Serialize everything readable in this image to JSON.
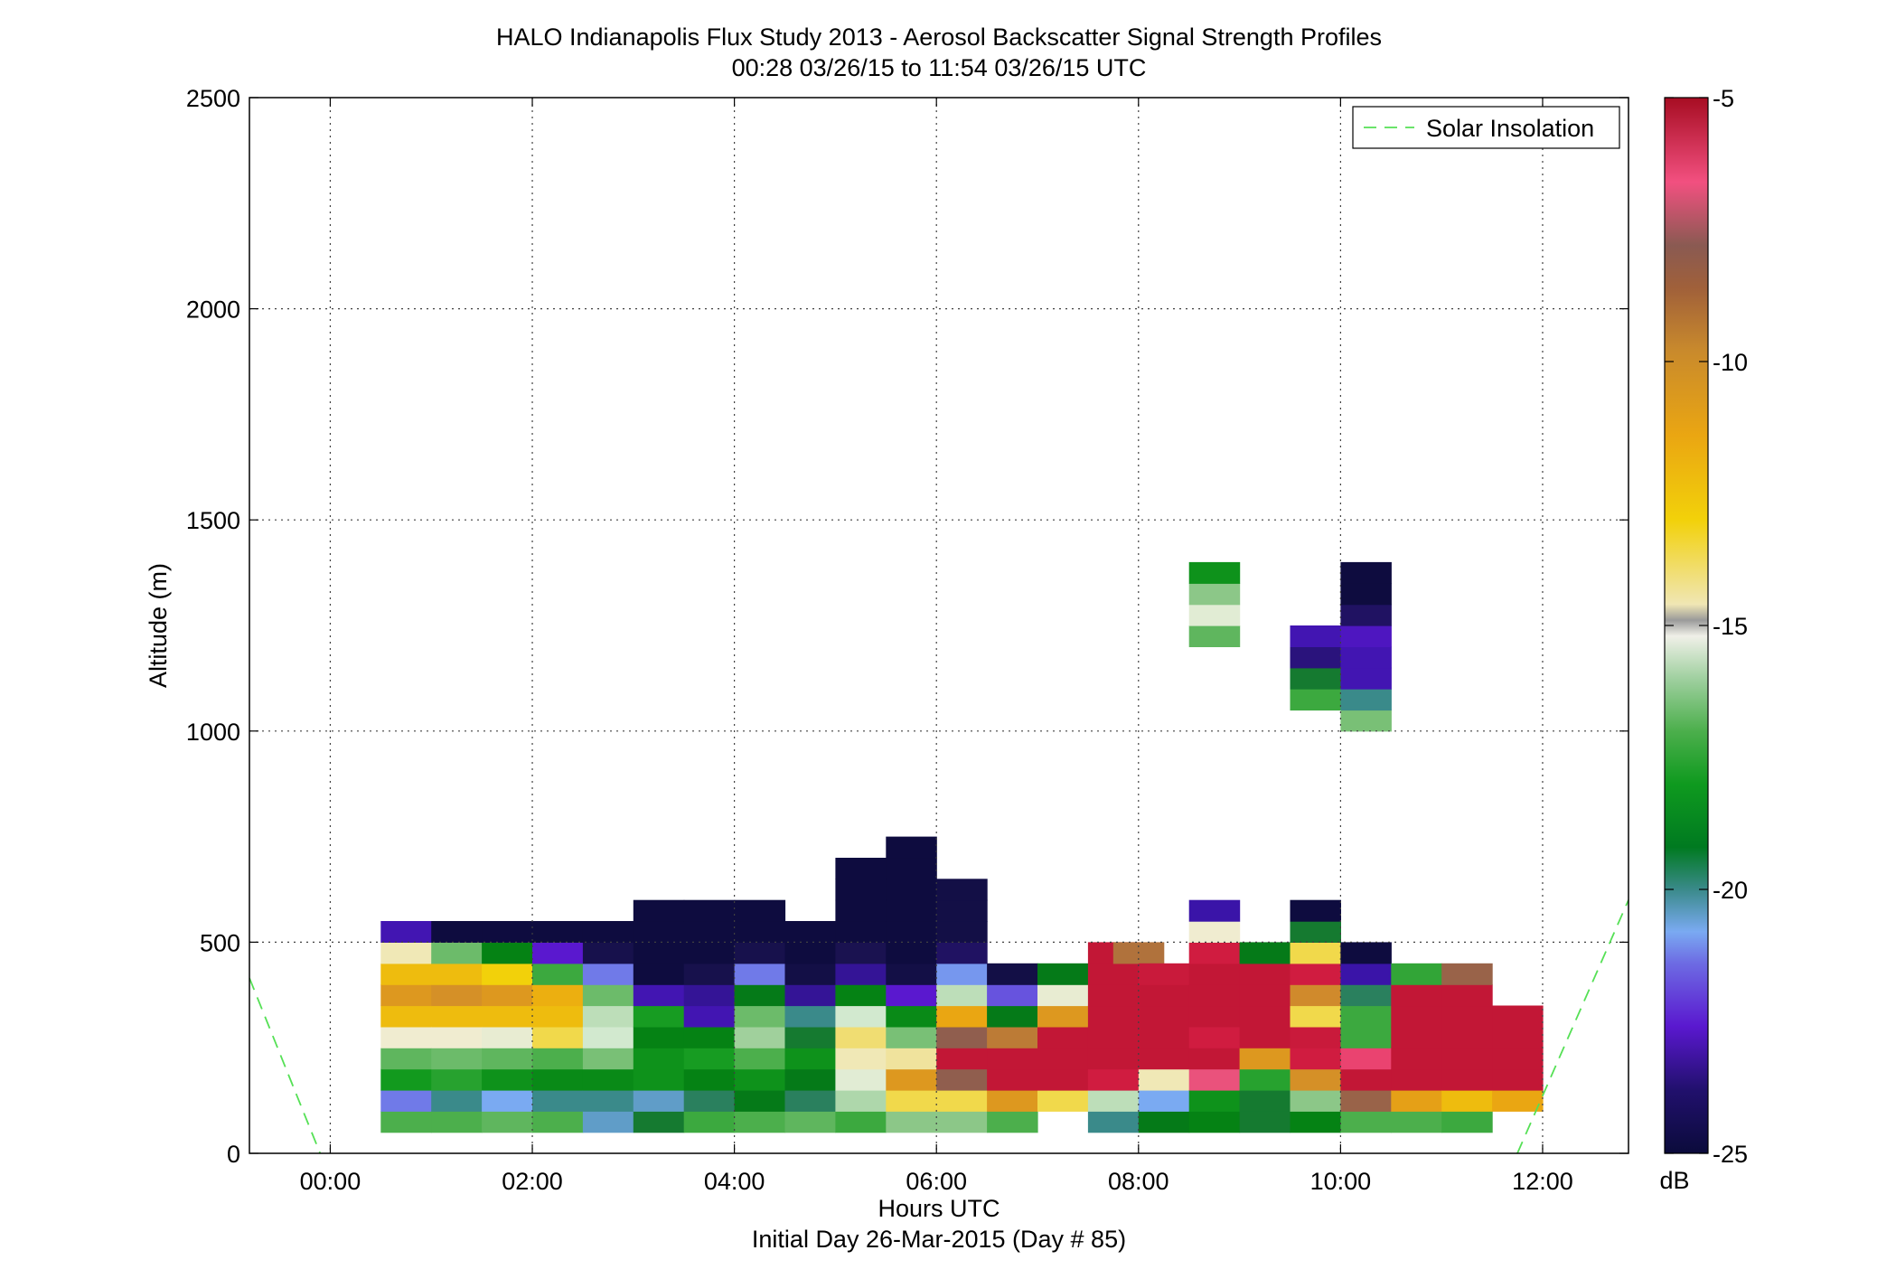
{
  "chart_data": {
    "type": "heatmap",
    "title": "HALO Indianapolis Flux Study 2013 - Aerosol Backscatter Signal Strength Profiles",
    "subtitle": "00:28 03/26/15 to 11:54 03/26/15  UTC",
    "xlabel": "Hours UTC",
    "xlabel2": "Initial Day 26-Mar-2015 (Day # 85)",
    "ylabel": "Altitude (m)",
    "xlim": [
      -0.8,
      12.85
    ],
    "ylim": [
      0,
      2500
    ],
    "x_ticks": [
      0,
      2,
      4,
      6,
      8,
      10,
      12
    ],
    "x_tick_labels": [
      "00:00",
      "02:00",
      "04:00",
      "06:00",
      "08:00",
      "10:00",
      "12:00"
    ],
    "y_ticks": [
      0,
      500,
      1000,
      1500,
      2000,
      2500
    ],
    "y_tick_labels": [
      "0",
      "500",
      "1000",
      "1500",
      "2000",
      "2500"
    ],
    "grid": true,
    "legend": {
      "entries": [
        "Solar Insolation"
      ],
      "position": "top-right"
    },
    "colorbar": {
      "range": [
        -25,
        -5
      ],
      "ticks": [
        -5,
        -10,
        -15,
        -20,
        -25
      ],
      "tick_labels": [
        "-5",
        "-10",
        "-15",
        "-20",
        "-25"
      ],
      "unit": "dB"
    },
    "cell_height_m": 50,
    "bin_start_hour": 0.5,
    "bin_width_hours": 0.5,
    "columns": [
      {
        "hour": 0.5,
        "base": 50,
        "values": [
          -17.5,
          -21.5,
          -18.6,
          -17.2,
          -14.8,
          -12.5,
          -11.5,
          -12.5,
          -14.5,
          -22.8
        ]
      },
      {
        "hour": 1.0,
        "base": 50,
        "values": [
          -17.5,
          -20.5,
          -18.2,
          -17.0,
          -14.8,
          -12.5,
          -11.2,
          -12.5,
          -17.0,
          -24.8
        ]
      },
      {
        "hour": 1.5,
        "base": 50,
        "values": [
          -17.2,
          -21.0,
          -18.8,
          -17.2,
          -15.0,
          -12.5,
          -11.5,
          -13.0,
          -19.2,
          -24.8
        ]
      },
      {
        "hour": 2.0,
        "base": 50,
        "values": [
          -17.5,
          -20.5,
          -19.0,
          -17.5,
          -13.5,
          -12.5,
          -12.2,
          -17.8,
          -22.2,
          -24.8
        ]
      },
      {
        "hour": 2.5,
        "base": 50,
        "values": [
          -20.8,
          -20.5,
          -19.0,
          -16.8,
          -15.5,
          -15.8,
          -17.0,
          -21.5,
          -24.2,
          -24.8
        ]
      },
      {
        "hour": 3.0,
        "base": 50,
        "values": [
          -19.8,
          -20.8,
          -18.8,
          -18.8,
          -19.2,
          -18.5,
          -22.8,
          -24.8,
          -24.8,
          -24.8,
          -24.8
        ]
      },
      {
        "hour": 3.5,
        "base": 50,
        "values": [
          -17.8,
          -20.2,
          -19.2,
          -18.5,
          -19.2,
          -22.8,
          -23.2,
          -24.2,
          -24.8,
          -24.8,
          -24.8
        ]
      },
      {
        "hour": 4.0,
        "base": 50,
        "values": [
          -17.5,
          -19.5,
          -18.8,
          -17.5,
          -16.2,
          -17.0,
          -19.5,
          -21.5,
          -24.2,
          -24.8,
          -24.8
        ]
      },
      {
        "hour": 4.5,
        "base": 50,
        "values": [
          -17.2,
          -20.2,
          -19.5,
          -18.8,
          -19.8,
          -20.5,
          -23.2,
          -24.5,
          -24.8,
          -24.8
        ]
      },
      {
        "hour": 5.0,
        "base": 50,
        "values": [
          -17.8,
          -16.0,
          -15.2,
          -14.5,
          -13.8,
          -15.5,
          -19.2,
          -23.2,
          -24.0,
          -24.8,
          -24.8,
          -24.8,
          -24.8
        ]
      },
      {
        "hour": 5.5,
        "base": 50,
        "values": [
          -16.5,
          -13.5,
          -11.5,
          -14.2,
          -16.8,
          -19.0,
          -22.2,
          -24.5,
          -24.8,
          -24.8,
          -24.8,
          -24.8,
          -24.8,
          -24.8
        ]
      },
      {
        "hour": 6.0,
        "base": 50,
        "values": [
          -16.5,
          -13.5,
          -9.2,
          -5.8,
          -9.2,
          -12.0,
          -15.8,
          -21.2,
          -23.8,
          -24.5,
          -24.5,
          -24.5
        ]
      },
      {
        "hour": 6.5,
        "base": 50,
        "values": [
          -17.5,
          -11.5,
          -5.8,
          -5.8,
          -10.5,
          -19.5,
          -21.8,
          -24.5
        ]
      },
      {
        "hour": 7.0,
        "base": 100,
        "values": [
          -13.5,
          -5.8,
          -5.8,
          -5.8,
          -11.5,
          -15.0,
          -19.5
        ]
      },
      {
        "hour": 7.5,
        "base": 50,
        "values": [
          -20.5,
          -15.8,
          -6.2,
          -5.8,
          -5.8,
          -5.8,
          -5.8,
          -5.8,
          -5.8
        ]
      },
      {
        "hour": 7.75,
        "base": 450,
        "values": [
          -10.2
        ]
      },
      {
        "hour": 8.0,
        "base": 50,
        "values": [
          -19.5,
          -21.0,
          -14.5,
          -5.8,
          -5.8,
          -5.8,
          -5.8,
          -6.0
        ]
      },
      {
        "hour": 8.5,
        "base": 50,
        "values": [
          -19.2,
          -18.8,
          -7.2,
          -5.8,
          -6.2,
          -5.8,
          -5.8,
          -5.8,
          -6.2,
          -14.8,
          -23.0
        ]
      },
      {
        "hour": 8.5,
        "base": 1200,
        "values": [
          -17.2,
          -15.2,
          -16.5,
          -18.8
        ]
      },
      {
        "hour": 9.0,
        "base": 50,
        "values": [
          -19.8,
          -19.8,
          -18.2,
          -11.5,
          -5.8,
          -5.8,
          -5.8,
          -5.8,
          -19.5
        ]
      },
      {
        "hour": 9.5,
        "base": 50,
        "values": [
          -19.2,
          -16.5,
          -11.2,
          -6.2,
          -6.0,
          -13.5,
          -11.0,
          -6.2,
          -13.5,
          -19.8,
          -24.8
        ]
      },
      {
        "hour": 9.5,
        "base": 1050,
        "values": [
          -17.8,
          -19.8,
          -23.5,
          -22.8
        ]
      },
      {
        "hour": 10.0,
        "base": 50,
        "values": [
          -17.5,
          -9.5,
          -5.8,
          -6.8,
          -17.8,
          -17.8,
          -20.2,
          -23.0,
          -24.8
        ]
      },
      {
        "hour": 10.0,
        "base": 1000,
        "values": [
          -16.8,
          -20.5,
          -22.8,
          -22.8,
          -22.5,
          -23.8,
          -24.8,
          -24.8
        ]
      },
      {
        "hour": 10.5,
        "base": 50,
        "values": [
          -17.5,
          -11.8,
          -5.8,
          -5.8,
          -5.8,
          -5.8,
          -5.8,
          -18.0
        ]
      },
      {
        "hour": 11.0,
        "base": 50,
        "values": [
          -17.8,
          -12.5,
          -5.8,
          -5.8,
          -5.8,
          -5.8,
          -5.8,
          -9.5
        ]
      },
      {
        "hour": 11.5,
        "base": 100,
        "values": [
          -12.0,
          -5.8,
          -5.8,
          -5.8,
          -5.8
        ]
      }
    ],
    "solar_insolation": [
      {
        "name": "Solar Insolation",
        "points": [
          [
            -0.8,
            415
          ],
          [
            -0.1,
            0
          ]
        ]
      },
      {
        "name": "Solar Insolation",
        "points": [
          [
            11.75,
            0
          ],
          [
            12.85,
            600
          ]
        ]
      }
    ]
  }
}
